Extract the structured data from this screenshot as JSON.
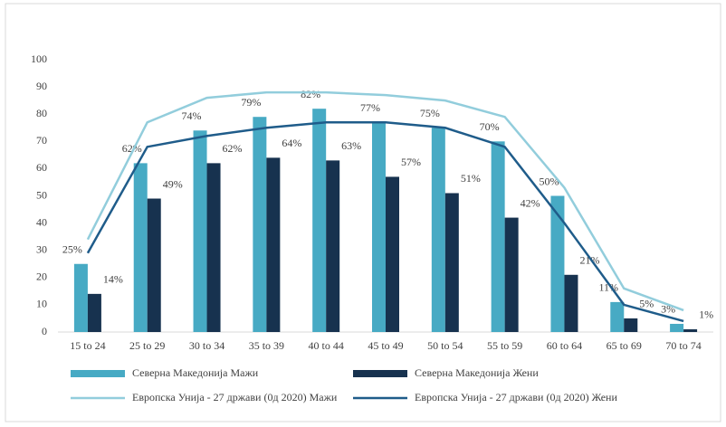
{
  "chart_data": {
    "type": "bar_line",
    "categories": [
      "15 to 24",
      "25 to 29",
      "30 to 34",
      "35 to 39",
      "40 to 44",
      "45 to 49",
      "50 to 54",
      "55 to 59",
      "60 to 64",
      "65 to 69",
      "70 to 74"
    ],
    "series": [
      {
        "name": "Северна Македонија Мажи",
        "type": "bar",
        "color": "#47aac4",
        "values": [
          25,
          62,
          74,
          79,
          82,
          77,
          75,
          70,
          50,
          11,
          3
        ],
        "value_labels": [
          "25%",
          "62%",
          "74%",
          "79%",
          "82%",
          "77%",
          "75%",
          "70%",
          "50%",
          "11%",
          "3%"
        ]
      },
      {
        "name": "Северна Македонија Жени",
        "type": "bar",
        "color": "#17324f",
        "values": [
          14,
          49,
          62,
          64,
          63,
          57,
          51,
          42,
          21,
          5,
          1
        ],
        "value_labels": [
          "14%",
          "49%",
          "62%",
          "64%",
          "63%",
          "57%",
          "51%",
          "42%",
          "21%",
          "5%",
          "1%"
        ]
      },
      {
        "name": "Европска Унија - 27 држави (0д 2020) Мажи",
        "type": "line",
        "color": "#92cddc",
        "values": [
          34,
          77,
          86,
          88,
          88,
          87,
          85,
          79,
          53,
          16,
          8
        ]
      },
      {
        "name": "Европска Унија - 27 држави (0д 2020) Жени",
        "type": "line",
        "color": "#1f5c8a",
        "values": [
          29,
          68,
          72,
          75,
          77,
          77,
          75,
          68,
          40,
          10,
          4
        ]
      }
    ],
    "ylim": [
      0,
      100
    ],
    "yticks": [
      0,
      10,
      20,
      30,
      40,
      50,
      60,
      70,
      80,
      90,
      100
    ],
    "grid": false
  }
}
